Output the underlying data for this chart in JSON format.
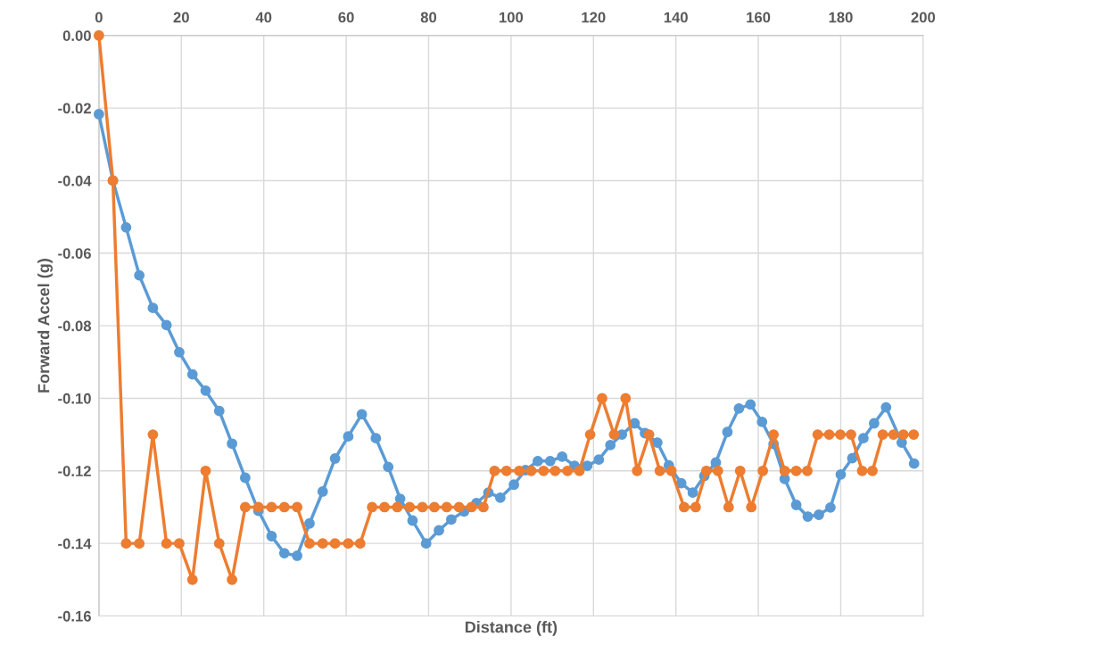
{
  "chart_data": {
    "type": "line",
    "xlabel": "Distance (ft)",
    "ylabel": "Forward Accel (g)",
    "xlim": [
      0,
      200
    ],
    "xticks": [
      0,
      20,
      40,
      60,
      80,
      100,
      120,
      140,
      160,
      180,
      200
    ],
    "ylim": [
      -0.16,
      0.0
    ],
    "yticks": [
      {
        "value": -0.16,
        "label": "-0.16"
      },
      {
        "value": -0.14,
        "label": "-0.14"
      },
      {
        "value": -0.12,
        "label": "-0.12"
      },
      {
        "value": -0.1,
        "label": "-0.10"
      },
      {
        "value": -0.08,
        "label": "-0.08"
      },
      {
        "value": -0.06,
        "label": "-0.06"
      },
      {
        "value": -0.04,
        "label": "-0.04"
      },
      {
        "value": -0.02,
        "label": "-0.02"
      },
      {
        "value": 0.0,
        "label": "0.00"
      }
    ],
    "grid": true,
    "marker": "circle",
    "line_style": "solid",
    "series": [
      {
        "color": "#5b9bd5",
        "x": [
          0,
          3.4,
          6.6,
          9.8,
          13.1,
          16.4,
          19.5,
          22.7,
          25.9,
          29.2,
          32.3,
          35.5,
          38.7,
          41.9,
          45.0,
          48.1,
          51.1,
          54.3,
          57.3,
          60.5,
          63.8,
          67.2,
          70.2,
          73.1,
          76.1,
          79.4,
          82.5,
          85.5,
          88.6,
          91.6,
          94.5,
          97.4,
          100.7,
          103.5,
          106.5,
          109.5,
          112.4,
          115.4,
          118.5,
          121.3,
          124.1,
          126.9,
          130.0,
          132.5,
          135.5,
          138.3,
          141.3,
          144.1,
          146.9,
          149.7,
          152.5,
          155.3,
          158.1,
          160.9,
          163.7,
          166.4,
          169.2,
          172.0,
          174.7,
          177.5,
          180.0,
          182.8,
          185.5,
          188.1,
          191.0,
          194.8,
          197.8
        ],
        "values": [
          -0.0217,
          -0.04,
          -0.0529,
          -0.0661,
          -0.0751,
          -0.0798,
          -0.0873,
          -0.0934,
          -0.0979,
          -0.1035,
          -0.1125,
          -0.1219,
          -0.131,
          -0.138,
          -0.1427,
          -0.1434,
          -0.1345,
          -0.1257,
          -0.1166,
          -0.1105,
          -0.1044,
          -0.111,
          -0.1189,
          -0.1277,
          -0.1337,
          -0.14,
          -0.1364,
          -0.1334,
          -0.1312,
          -0.1289,
          -0.126,
          -0.1274,
          -0.1238,
          -0.1198,
          -0.1173,
          -0.1173,
          -0.1161,
          -0.1186,
          -0.1186,
          -0.1169,
          -0.1129,
          -0.11,
          -0.1069,
          -0.1096,
          -0.1122,
          -0.1185,
          -0.1234,
          -0.126,
          -0.1214,
          -0.1177,
          -0.1093,
          -0.1028,
          -0.1017,
          -0.1065,
          -0.1126,
          -0.1222,
          -0.1294,
          -0.1326,
          -0.1321,
          -0.1301,
          -0.121,
          -0.1165,
          -0.111,
          -0.1069,
          -0.1025,
          -0.1122,
          -0.118
        ]
      },
      {
        "color": "#ed7d31",
        "x": [
          0,
          3.4,
          6.6,
          9.8,
          13.1,
          16.4,
          19.5,
          22.7,
          25.9,
          29.2,
          32.3,
          35.5,
          38.7,
          41.9,
          45.0,
          48.1,
          51.1,
          54.3,
          57.3,
          60.5,
          63.4,
          66.3,
          69.3,
          72.4,
          75.4,
          78.5,
          81.4,
          84.4,
          87.4,
          90.4,
          93.3,
          96.0,
          98.9,
          102.0,
          104.9,
          107.9,
          110.7,
          113.7,
          116.6,
          119.2,
          122.1,
          125.0,
          127.8,
          130.6,
          133.5,
          136.1,
          138.9,
          142.0,
          144.8,
          147.4,
          150.2,
          152.8,
          155.6,
          158.3,
          161.1,
          163.7,
          166.4,
          169.2,
          171.9,
          174.4,
          177.2,
          179.9,
          182.5,
          185.2,
          187.7,
          190.2,
          192.8,
          195.2,
          197.7
        ],
        "values": [
          0.0,
          -0.04,
          -0.14,
          -0.14,
          -0.11,
          -0.14,
          -0.14,
          -0.15,
          -0.12,
          -0.14,
          -0.15,
          -0.13,
          -0.13,
          -0.13,
          -0.13,
          -0.13,
          -0.14,
          -0.14,
          -0.14,
          -0.14,
          -0.14,
          -0.13,
          -0.13,
          -0.13,
          -0.13,
          -0.13,
          -0.13,
          -0.13,
          -0.13,
          -0.13,
          -0.13,
          -0.12,
          -0.12,
          -0.12,
          -0.12,
          -0.12,
          -0.12,
          -0.12,
          -0.12,
          -0.11,
          -0.1,
          -0.11,
          -0.1,
          -0.12,
          -0.11,
          -0.12,
          -0.12,
          -0.13,
          -0.13,
          -0.12,
          -0.12,
          -0.13,
          -0.12,
          -0.13,
          -0.12,
          -0.11,
          -0.12,
          -0.12,
          -0.12,
          -0.11,
          -0.11,
          -0.11,
          -0.11,
          -0.12,
          -0.12,
          -0.11,
          -0.11,
          -0.11,
          -0.11
        ]
      }
    ]
  }
}
